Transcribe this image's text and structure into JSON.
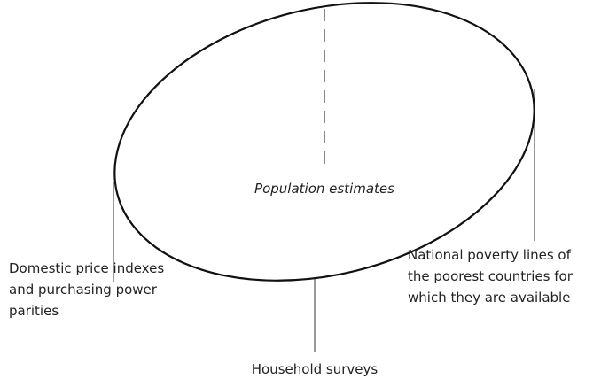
{
  "center_label": "Population estimates",
  "labels": [
    {
      "lines": [
        "Domestic price indexes",
        "and purchasing power",
        "parities"
      ]
    },
    {
      "lines": [
        "Household surveys"
      ]
    },
    {
      "lines": [
        "National poverty lines of",
        "the poorest countries for",
        "which they are available"
      ]
    }
  ]
}
